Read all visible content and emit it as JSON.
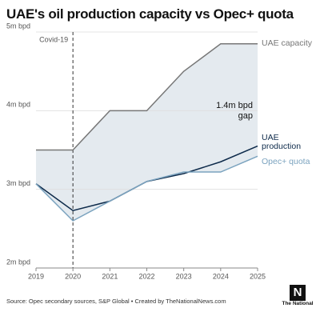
{
  "chart_data": {
    "type": "line",
    "title": "UAE's oil production capacity vs Opec+ quota",
    "x": [
      2019,
      2020,
      2021,
      2022,
      2023,
      2024,
      2025
    ],
    "xlim": [
      2019,
      2025
    ],
    "xticks": [
      2019,
      2020,
      2021,
      2022,
      2023,
      2024,
      2025
    ],
    "ylim": [
      2,
      5
    ],
    "yticks": [
      {
        "value": 2,
        "label": "2m bpd"
      },
      {
        "value": 3,
        "label": "3m bpd"
      },
      {
        "value": 4,
        "label": "4m bpd"
      },
      {
        "value": 5,
        "label": "5m bpd"
      }
    ],
    "grid": true,
    "series": [
      {
        "name": "UAE capacity",
        "color": "#777777",
        "values": [
          3.5,
          3.5,
          4.0,
          4.0,
          4.5,
          4.85,
          4.85
        ]
      },
      {
        "name": "UAE production",
        "color": "#0d2a4a",
        "values": [
          3.07,
          2.73,
          2.85,
          3.1,
          3.2,
          3.35,
          3.55
        ]
      },
      {
        "name": "Opec+ quota",
        "color": "#7ba3bf",
        "values": [
          3.07,
          2.6,
          2.85,
          3.1,
          3.22,
          3.22,
          3.42
        ]
      }
    ],
    "area_color": "#e4eaef",
    "annotations": [
      {
        "label": "Covid-19",
        "x": 2020
      },
      {
        "label": "1.4m bpd gap"
      }
    ],
    "source": "Source: Opec secondary sources, S&P Global • Created by TheNationalNews.com",
    "logo": {
      "mark": "N",
      "text": "The National"
    }
  }
}
